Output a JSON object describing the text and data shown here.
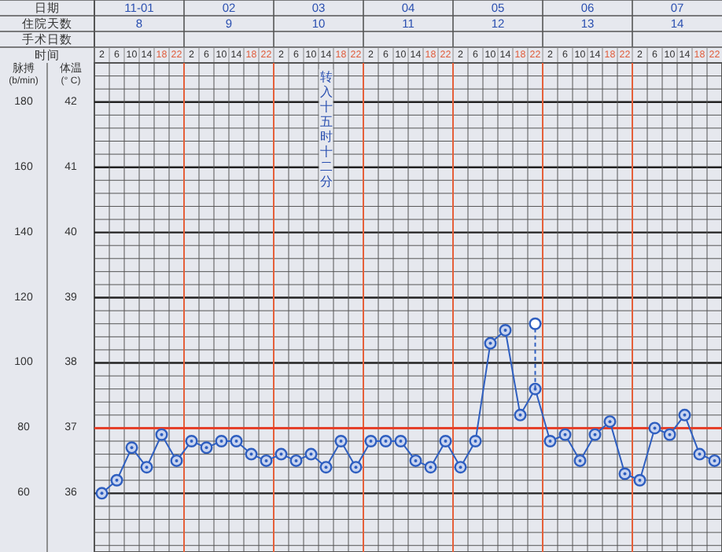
{
  "chart_data": {
    "type": "line",
    "xlabel": "时间",
    "ylabel": "体温 (° C)",
    "y2label": "脉搏 (b/min)",
    "categories": [
      "2",
      "6",
      "10",
      "14",
      "18",
      "22",
      "2",
      "6",
      "10",
      "14",
      "18",
      "22",
      "2",
      "6",
      "10",
      "14",
      "18",
      "22",
      "2",
      "6",
      "10",
      "14",
      "18",
      "22",
      "2",
      "6",
      "10",
      "14",
      "18",
      "22",
      "2",
      "6",
      "10",
      "14",
      "18",
      "22",
      "2",
      "6",
      "10",
      "14",
      "18",
      "22"
    ],
    "ylim": [
      35.1,
      42.6
    ],
    "yticks": [
      36,
      37,
      38,
      39,
      40,
      41,
      42
    ],
    "y2lim": [
      42,
      192
    ],
    "y2ticks": [
      60,
      80,
      100,
      120,
      140,
      160,
      180
    ],
    "series": [
      {
        "color": "#2f5fc0",
        "values": [
          36.0,
          36.2,
          36.7,
          36.4,
          36.9,
          36.5,
          36.8,
          36.7,
          36.8,
          36.8,
          36.6,
          36.5,
          36.6,
          36.5,
          36.6,
          36.4,
          36.8,
          36.4,
          36.8,
          36.8,
          36.8,
          36.5,
          36.4,
          36.8,
          36.4,
          36.8,
          38.3,
          38.5,
          37.2,
          37.6,
          36.8,
          36.9,
          36.5,
          36.9,
          37.1,
          36.3,
          36.2,
          37.0,
          36.9,
          37.2,
          36.6,
          36.5
        ]
      },
      {
        "color": "#2f5fc0",
        "type": "scatter",
        "line_style": "dashed",
        "marker": "circle",
        "values": [
          null,
          null,
          null,
          null,
          null,
          null,
          null,
          null,
          null,
          null,
          null,
          null,
          null,
          null,
          null,
          null,
          null,
          null,
          null,
          null,
          null,
          null,
          null,
          null,
          null,
          null,
          null,
          null,
          null,
          38.6,
          null,
          null,
          null,
          null,
          null,
          null,
          null,
          null,
          null,
          null,
          null,
          null
        ],
        "errors": [
          null,
          null,
          null,
          null,
          null,
          null,
          null,
          null,
          null,
          null,
          null,
          null,
          null,
          null,
          null,
          null,
          null,
          null,
          null,
          null,
          null,
          null,
          null,
          null,
          null,
          null,
          null,
          null,
          null,
          [
            37.6,
            38.6
          ],
          null,
          null,
          null,
          null,
          null,
          null,
          null,
          null,
          null,
          null,
          null,
          null
        ]
      }
    ],
    "ref_lines": [
      {
        "axis": "y",
        "value": 37,
        "color": "#e5402a"
      }
    ],
    "marker": "circle",
    "grid": true,
    "annotations": [
      "日期",
      "11-01",
      "02",
      "03",
      "04",
      "05",
      "06",
      "07",
      "住院天数",
      "8",
      "9",
      "10",
      "11",
      "12",
      "13",
      "14",
      "手术日数",
      "转入十五时十二分"
    ]
  }
}
